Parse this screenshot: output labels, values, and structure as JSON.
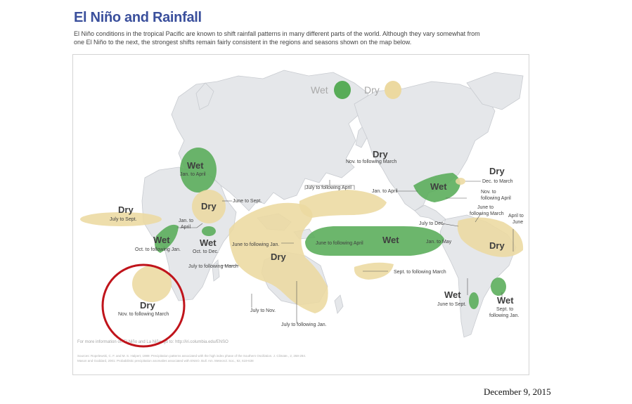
{
  "header": {
    "title": "El Niño and Rainfall",
    "subtitle_line1": "El Niño conditions in the tropical Pacific are known to shift rainfall patterns in many different parts of the world. Although they vary somewhat from",
    "subtitle_line2": "one El Niño to the next, the strongest shifts remain fairly consistent in the regions and seasons shown on the map below."
  },
  "legend": {
    "wet_label": "Wet",
    "dry_label": "Dry",
    "wet_color": "#58ac58",
    "dry_color": "#ecd9a0"
  },
  "colors": {
    "land": "#e5e7ea",
    "coast": "#c8cbd0",
    "wet": "#58ac58",
    "dry": "#ecd9a0",
    "highlight_circle": "#c0141b"
  },
  "regions": {
    "east_africa": {
      "label": "Wet",
      "season": "Jan. to April"
    },
    "horn_africa": {
      "label": "Dry",
      "season_left": "Jan. to",
      "season_left2": "April",
      "season_top": "June to Sept."
    },
    "west_africa": {
      "label": "Dry",
      "season": "July to Sept."
    },
    "central_africa_wet": {
      "label": "Wet",
      "season": "Oct. to following Jan."
    },
    "east_africa_wet2": {
      "label": "Wet",
      "season": "Oct. to Dec."
    },
    "southern_africa": {
      "label": "Dry",
      "season": "Nov. to following March"
    },
    "indonesia": {
      "label": "Dry",
      "season_top": "June to following Jan.",
      "season_left": "July to following March",
      "season_bottom1": "July to Nov.",
      "season_bottom2": "July to following Jan."
    },
    "pacific_dry_top": {
      "season": "July to following April"
    },
    "pacific_wet": {
      "label": "Wet",
      "season_left": "June to following April",
      "season_right": "Jan. to May"
    },
    "south_pacific_dry": {
      "season": "Sept. to following March"
    },
    "north_america_dry": {
      "label": "Dry",
      "season": "Nov. to following March"
    },
    "us_south_wet": {
      "label": "Wet",
      "season_left": "Jan. to April",
      "season_right1": "Nov. to",
      "season_right2": "following April"
    },
    "us_east_dry": {
      "label": "Dry",
      "season": "Dec. to March"
    },
    "central_america": {
      "season1": "June to",
      "season2": "following March",
      "season3": "July to Dec."
    },
    "brazil_dry": {
      "label": "Dry",
      "season1": "April to",
      "season2": "June"
    },
    "chile_wet": {
      "label": "Wet",
      "season": "June to Sept."
    },
    "argentina_wet": {
      "label": "Wet",
      "season1": "Sept. to",
      "season2": "following Jan."
    }
  },
  "credits": {
    "more_info": "For more information on El Niño and La Niña, go to: http://iri.columbia.edu/ENSO",
    "sources_line1": "Sources:  Ropelewski, C. F. and M. S. Halpert, 1989: Precipitation patterns associated with the high index phase of the Southern Oscillation. J.  Climate., 2, 268-284.",
    "sources_line2": "Mason and Goddard, 2001: Probabilistic precipitation anomalies associated with ENSO.  Bull. Am. Meteorol. Soc., 82, 619-638"
  },
  "footer": {
    "date": "December 9, 2015"
  }
}
